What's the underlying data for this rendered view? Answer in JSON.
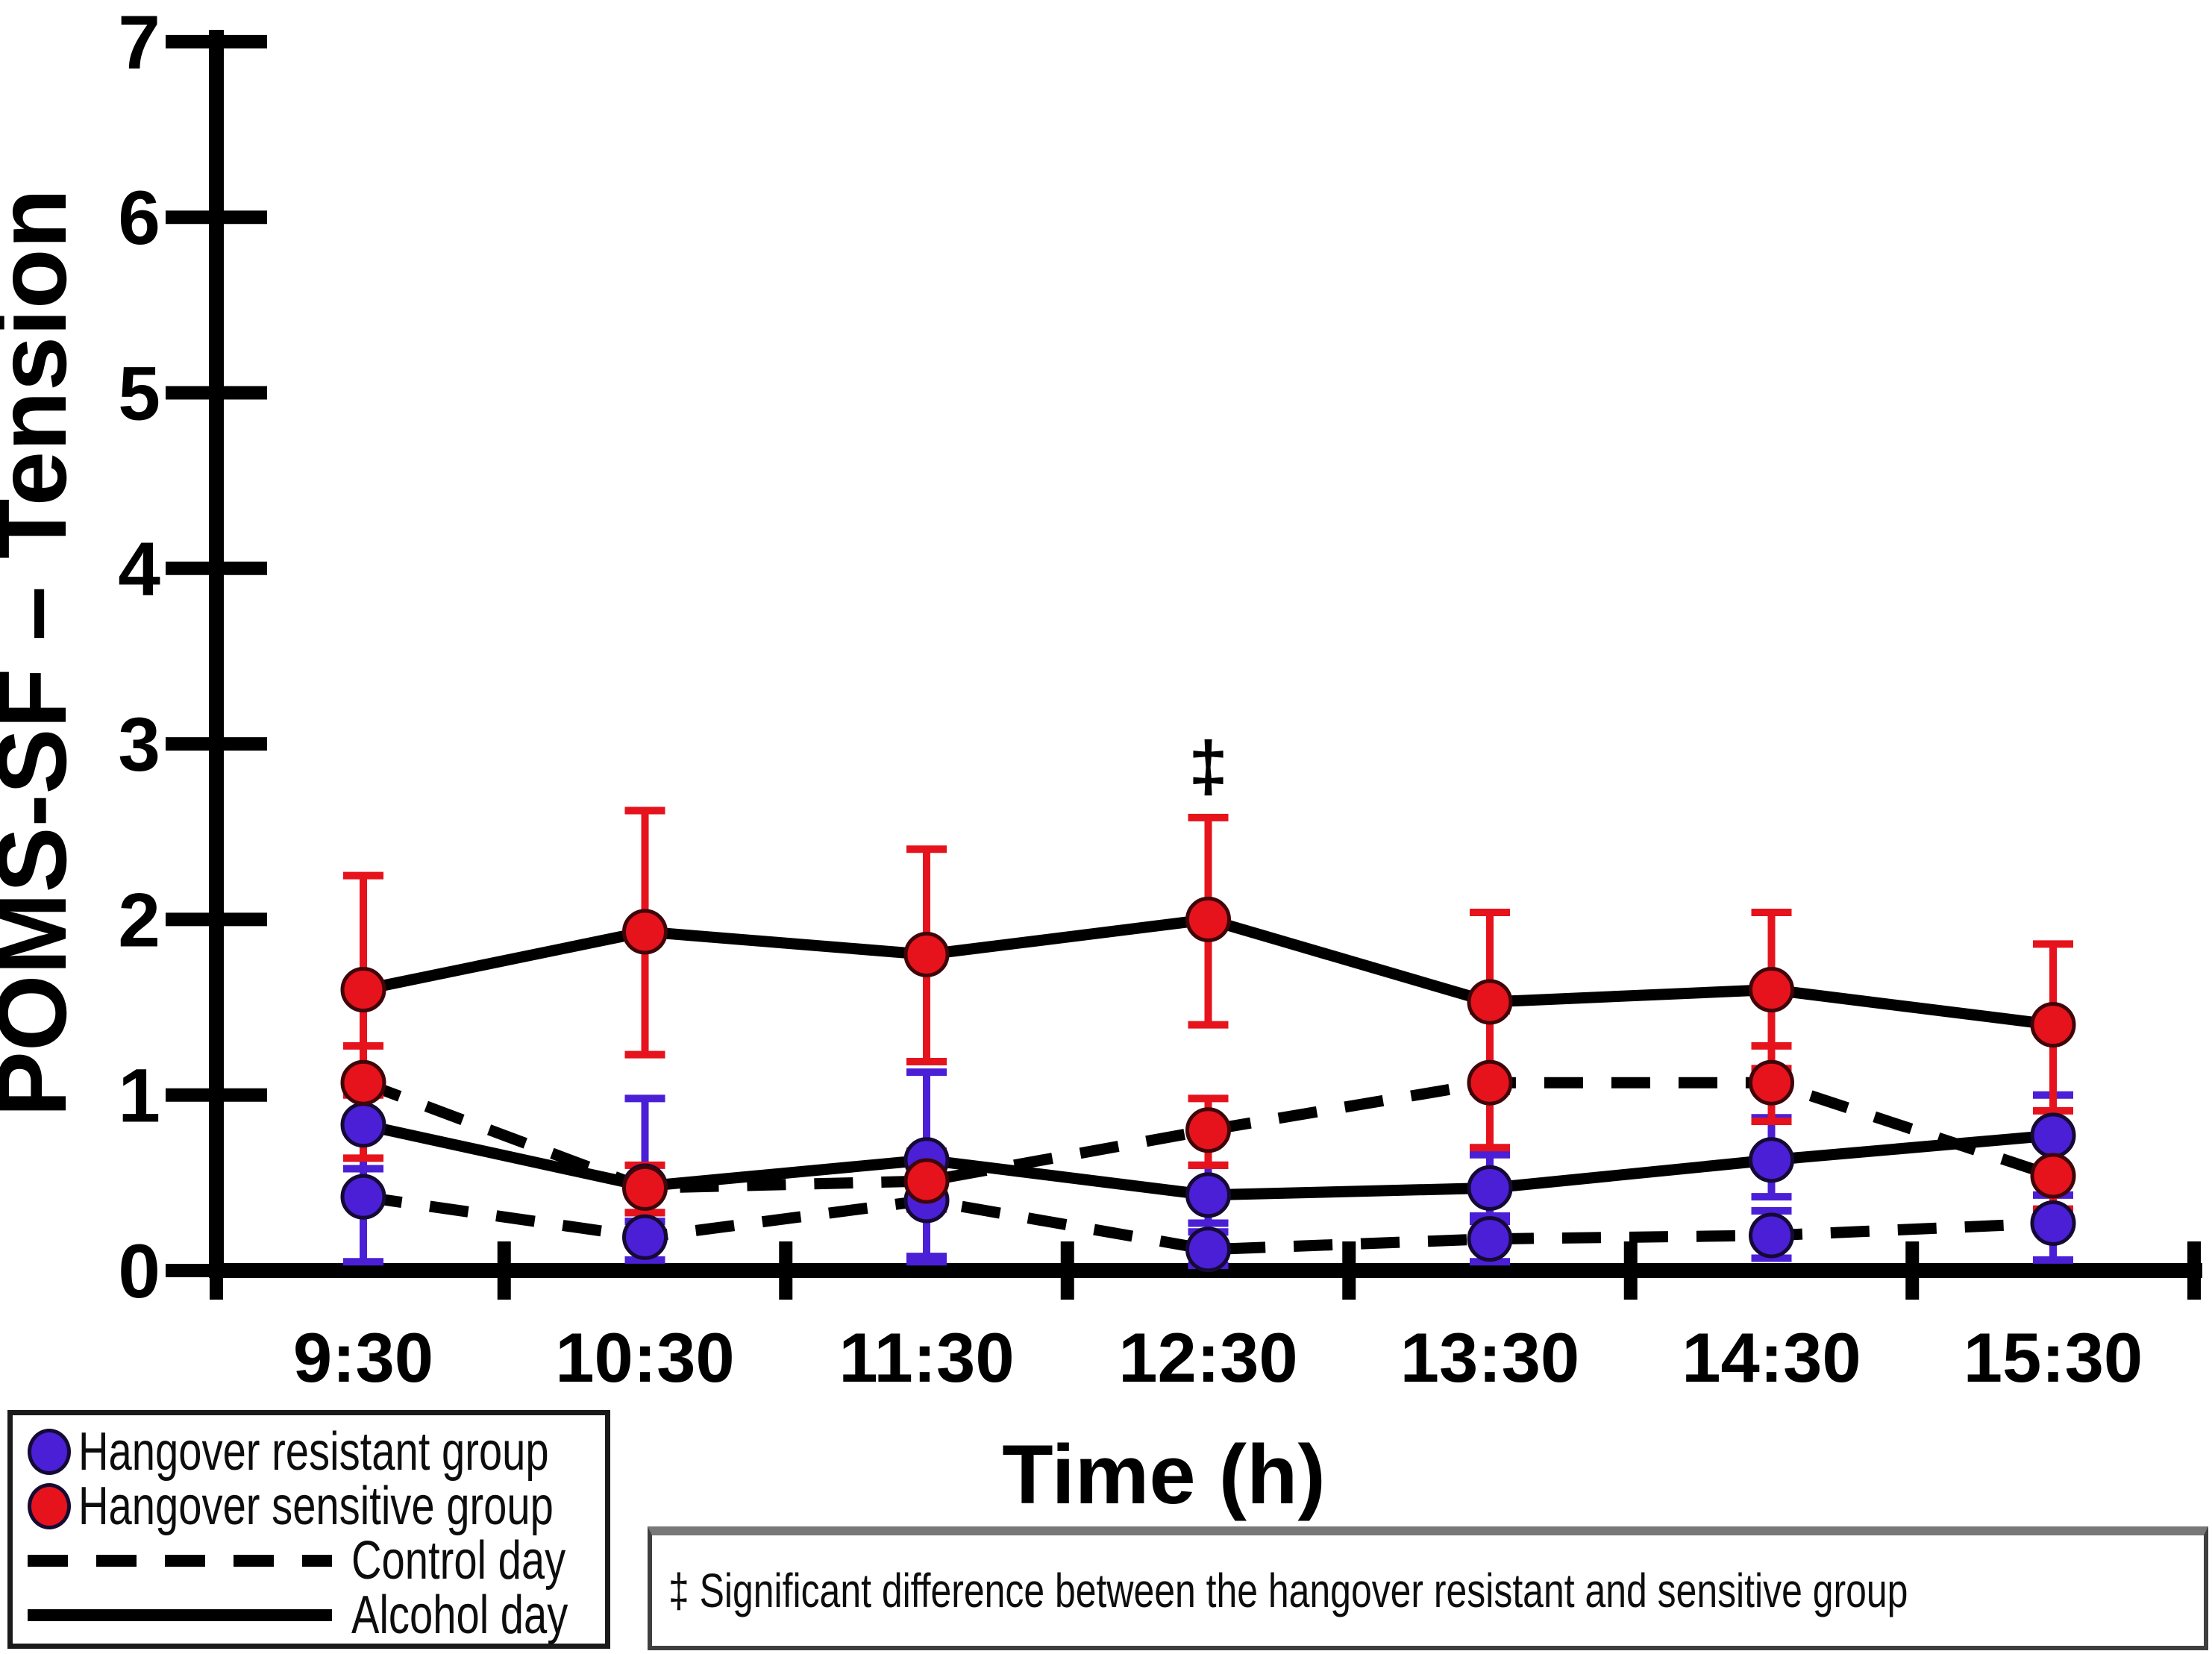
{
  "chart_data": {
    "type": "line",
    "title": "",
    "xlabel": "Time (h)",
    "ylabel": "POMS-SF – Tension",
    "ylim": [
      0,
      7
    ],
    "yticks": [
      0,
      1,
      2,
      3,
      4,
      5,
      6,
      7
    ],
    "categories": [
      "9:30",
      "10:30",
      "11:30",
      "12:30",
      "13:30",
      "14:30",
      "15:30"
    ],
    "grid": false,
    "legend_position": "bottom-left",
    "series": [
      {
        "id": "resistant-control",
        "group": "Hangover resistant group",
        "condition": "Control day",
        "line_style": "dashed",
        "color": "#4a1fd6",
        "edge_color": "#140a33",
        "values": [
          0.42,
          0.19,
          0.4,
          0.12,
          0.18,
          0.2,
          0.27
        ],
        "err_hi": [
          0.58,
          0.33,
          0.52,
          0.22,
          0.31,
          0.34,
          0.43
        ],
        "err_lo": [
          0.05,
          0.06,
          0.05,
          0.03,
          0.05,
          0.07,
          0.06
        ]
      },
      {
        "id": "resistant-alcohol",
        "group": "Hangover resistant group",
        "condition": "Alcohol day",
        "line_style": "solid",
        "color": "#4a1fd6",
        "edge_color": "#140a33",
        "values": [
          0.83,
          0.48,
          0.63,
          0.43,
          0.47,
          0.63,
          0.77
        ],
        "err_hi": [
          1.02,
          0.98,
          1.13,
          0.6,
          0.66,
          0.87,
          1.0
        ],
        "err_lo": [
          0.58,
          0.28,
          0.08,
          0.27,
          0.28,
          0.42,
          0.56
        ]
      },
      {
        "id": "sensitive-control",
        "group": "Hangover sensitive group",
        "condition": "Control day",
        "line_style": "dashed",
        "color": "#e6131c",
        "edge_color": "#3f0509",
        "values": [
          1.07,
          0.47,
          0.51,
          0.8,
          1.07,
          1.07,
          0.54
        ],
        "err_hi": [
          1.28,
          0.6,
          0.68,
          0.98,
          1.48,
          1.28,
          0.76
        ],
        "err_lo": [
          0.64,
          0.33,
          0.35,
          0.6,
          0.7,
          0.85,
          0.35
        ]
      },
      {
        "id": "sensitive-alcohol",
        "group": "Hangover sensitive group",
        "condition": "Alcohol day",
        "line_style": "solid",
        "color": "#e6131c",
        "edge_color": "#3f0509",
        "values": [
          1.6,
          1.93,
          1.8,
          2.0,
          1.53,
          1.6,
          1.4
        ],
        "err_hi": [
          2.25,
          2.62,
          2.4,
          2.58,
          2.04,
          2.04,
          1.86
        ],
        "err_lo": [
          1.0,
          1.23,
          1.19,
          1.4,
          1.02,
          1.15,
          0.91
        ]
      }
    ],
    "annotation": {
      "symbol": "‡",
      "category": "12:30",
      "category_index": 3,
      "value": 2.88
    },
    "legend": {
      "items": [
        {
          "marker": "dot",
          "color": "#4a1fd6",
          "label": "Hangover resistant group"
        },
        {
          "marker": "dot",
          "color": "#e6131c",
          "label": "Hangover sensitive group"
        },
        {
          "marker": "dashed-line",
          "color": "#000000",
          "label": "Control day"
        },
        {
          "marker": "solid-line",
          "color": "#000000",
          "label": "Alcohol day"
        }
      ]
    },
    "footnote": "‡ Significant difference between the hangover resistant and sensitive group"
  },
  "colors": {
    "background": "#ffffff",
    "axis": "#000000",
    "line": "#000000",
    "resistant": "#4a1fd6",
    "sensitive": "#e6131c"
  }
}
